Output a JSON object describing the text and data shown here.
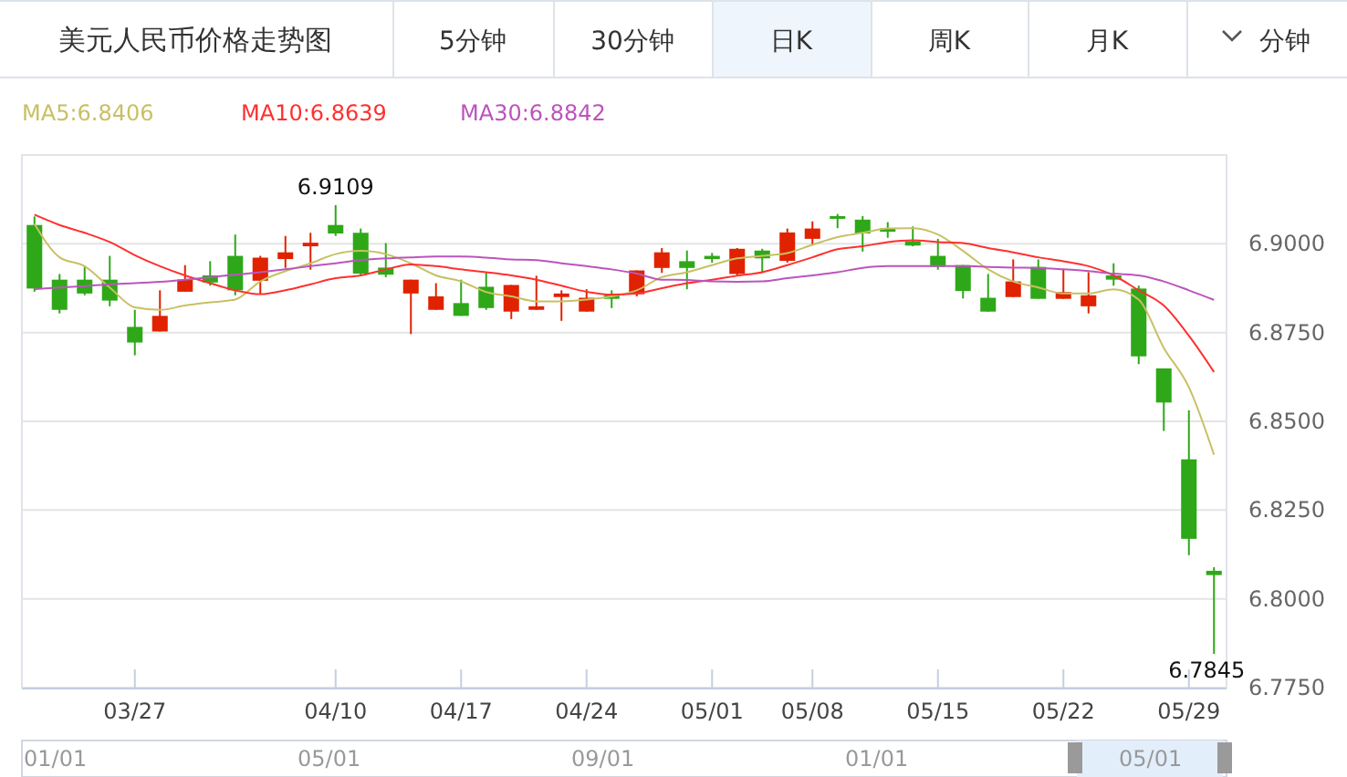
{
  "chart_data": {
    "type": "candlestick",
    "title": "美元人民币价格走势图",
    "categories": [
      null,
      null,
      null,
      null,
      "03/27",
      null,
      null,
      null,
      null,
      null,
      null,
      null,
      "04/10",
      null,
      null,
      null,
      null,
      "04/17",
      null,
      null,
      null,
      null,
      "04/24",
      null,
      null,
      null,
      null,
      "05/01",
      null,
      null,
      null,
      "05/08",
      null,
      null,
      null,
      null,
      "05/15",
      null,
      null,
      null,
      null,
      "05/22",
      null,
      null,
      null,
      null,
      "05/29",
      null
    ],
    "ohlc": [
      [
        6.9053,
        6.9077,
        6.8865,
        6.8874
      ],
      [
        6.8899,
        6.8915,
        6.8804,
        6.8814
      ],
      [
        6.8899,
        6.8937,
        6.8855,
        6.886
      ],
      [
        6.8899,
        6.8966,
        6.8824,
        6.884
      ],
      [
        6.8766,
        6.8814,
        6.8686,
        6.8722
      ],
      [
        6.8753,
        6.8869,
        6.8753,
        6.8797
      ],
      [
        6.8865,
        6.894,
        6.8865,
        6.8899
      ],
      [
        6.8911,
        6.8951,
        6.8882,
        6.8891
      ],
      [
        6.8966,
        6.9026,
        6.8855,
        6.8869
      ],
      [
        6.8896,
        6.8966,
        6.8857,
        6.8961
      ],
      [
        6.8957,
        6.9022,
        6.8932,
        6.8976
      ],
      [
        6.8993,
        6.9031,
        6.8927,
        6.9003
      ],
      [
        6.9053,
        6.9109,
        6.9022,
        6.9029
      ],
      [
        6.9031,
        6.9043,
        6.891,
        6.8916
      ],
      [
        6.8933,
        6.9002,
        6.8906,
        6.8913
      ],
      [
        6.886,
        6.8899,
        6.8746,
        6.8899
      ],
      [
        6.8814,
        6.8889,
        6.8814,
        6.8852
      ],
      [
        6.8833,
        6.8899,
        6.8797,
        6.8797
      ],
      [
        6.8879,
        6.892,
        6.8814,
        6.8819
      ],
      [
        6.8809,
        6.8884,
        6.8788,
        6.8884
      ],
      [
        6.8814,
        6.891,
        6.8814,
        6.8824
      ],
      [
        6.885,
        6.8869,
        6.8783,
        6.886
      ],
      [
        6.8809,
        6.8872,
        6.8809,
        6.8848
      ],
      [
        6.8855,
        6.8869,
        6.8819,
        6.8845
      ],
      [
        6.8858,
        6.8925,
        6.8852,
        6.8925
      ],
      [
        6.8932,
        6.8988,
        6.8918,
        6.8976
      ],
      [
        6.8951,
        6.8981,
        6.8872,
        6.8932
      ],
      [
        6.8966,
        6.8974,
        6.8947,
        6.8957
      ],
      [
        6.8915,
        6.8988,
        6.891,
        6.8986
      ],
      [
        6.8981,
        6.8986,
        6.8918,
        6.8959
      ],
      [
        6.8952,
        6.9043,
        6.8947,
        6.9032
      ],
      [
        6.9014,
        6.9063,
        6.8998,
        6.9043
      ],
      [
        6.9078,
        6.9084,
        6.9044,
        6.9072
      ],
      [
        6.9068,
        6.9078,
        6.8978,
        6.9029
      ],
      [
        6.9044,
        6.9061,
        6.9017,
        6.9034
      ],
      [
        6.9007,
        6.9049,
        6.8993,
        6.8995
      ],
      [
        6.8966,
        6.9014,
        6.8927,
        6.8935
      ],
      [
        6.894,
        6.894,
        6.8846,
        6.8867
      ],
      [
        6.8848,
        6.8915,
        6.8809,
        6.8809
      ],
      [
        6.885,
        6.8956,
        6.885,
        6.8894
      ],
      [
        6.8935,
        6.8956,
        6.8845,
        6.8845
      ],
      [
        6.8845,
        6.8928,
        6.8845,
        6.8864
      ],
      [
        6.8824,
        6.892,
        6.8804,
        6.8855
      ],
      [
        6.8911,
        6.8945,
        6.8882,
        6.8899
      ],
      [
        6.8874,
        6.8882,
        6.8661,
        6.8683
      ],
      [
        6.8649,
        6.8649,
        6.8473,
        6.8553
      ],
      [
        6.8393,
        6.8531,
        6.8123,
        6.8169
      ],
      [
        6.8079,
        6.8089,
        6.7845,
        6.8067
      ]
    ],
    "series": [
      {
        "type": "line",
        "name": "MA5:6.8406",
        "color": "#c8c064",
        "values": [
          6.9056,
          6.8962,
          6.8937,
          6.8877,
          6.8821,
          6.8814,
          6.8826,
          6.8835,
          6.8843,
          6.8894,
          6.8923,
          6.8945,
          6.8971,
          6.898,
          6.8971,
          6.8945,
          6.8911,
          6.8894,
          6.8864,
          6.8852,
          6.8838,
          6.8838,
          6.8843,
          6.8852,
          6.8869,
          6.8906,
          6.892,
          6.894,
          6.8959,
          6.8966,
          6.8974,
          6.8997,
          6.9019,
          6.9031,
          6.9043,
          6.9044,
          6.9026,
          6.898,
          6.8928,
          6.8894,
          6.8877,
          6.886,
          6.886,
          6.8872,
          6.8843,
          6.8707,
          6.8596,
          6.8406
        ]
      },
      {
        "type": "line",
        "name": "MA10:6.8639",
        "color": "#ff3030",
        "values": [
          6.9082,
          6.9053,
          6.9031,
          6.9005,
          6.8968,
          6.8937,
          6.8911,
          6.8889,
          6.8869,
          6.8858,
          6.8869,
          6.8886,
          6.8903,
          6.8911,
          6.8928,
          6.8942,
          6.8937,
          6.8928,
          6.892,
          6.8911,
          6.8899,
          6.8882,
          6.8865,
          6.8857,
          6.886,
          6.8875,
          6.8889,
          6.8899,
          6.891,
          6.892,
          6.894,
          6.8962,
          6.8985,
          6.8993,
          6.9005,
          6.901,
          6.9005,
          6.9002,
          6.8988,
          6.8976,
          6.8962,
          6.8951,
          6.8937,
          6.8911,
          6.8869,
          6.8826,
          6.8741,
          6.8639
        ]
      },
      {
        "type": "line",
        "name": "MA30:6.8842",
        "color": "#bb55bb",
        "values": [
          6.8872,
          6.8877,
          6.8881,
          6.8886,
          6.8889,
          6.8893,
          6.8899,
          6.8906,
          6.8913,
          6.892,
          6.8928,
          6.8937,
          6.8945,
          6.8954,
          6.8959,
          6.8962,
          6.8964,
          6.8964,
          6.8961,
          6.8956,
          6.8954,
          6.8945,
          6.8937,
          6.8928,
          6.8916,
          6.8899,
          6.8898,
          6.8894,
          6.8893,
          6.8894,
          6.8903,
          6.8911,
          6.892,
          6.8932,
          6.8937,
          6.8937,
          6.8937,
          6.8937,
          6.8935,
          6.8933,
          6.8932,
          6.8928,
          6.8923,
          6.8916,
          6.8911,
          6.8894,
          6.8869,
          6.8842
        ]
      }
    ],
    "ylim": [
      6.775,
      6.925
    ],
    "yticks": [
      {
        "value": 6.775,
        "label": "6.7750"
      },
      {
        "value": 6.8,
        "label": "6.8000"
      },
      {
        "value": 6.825,
        "label": "6.8250"
      },
      {
        "value": 6.85,
        "label": "6.8500"
      },
      {
        "value": 6.875,
        "label": "6.8750"
      },
      {
        "value": 6.9,
        "label": "6.9000"
      },
      {
        "value": 6.925,
        "label": null
      }
    ],
    "grid": "y",
    "marker": "none",
    "annotations": [
      "5分钟",
      "30分钟",
      "日K",
      "周K",
      "月K",
      "分钟",
      "01/01",
      "05/01",
      "09/01",
      "01/01",
      "05/01",
      {
        "text": "6.9109",
        "x": "04/10",
        "y": 6.9109
      },
      {
        "text": "6.7845",
        "y": 6.7845
      }
    ]
  }
}
